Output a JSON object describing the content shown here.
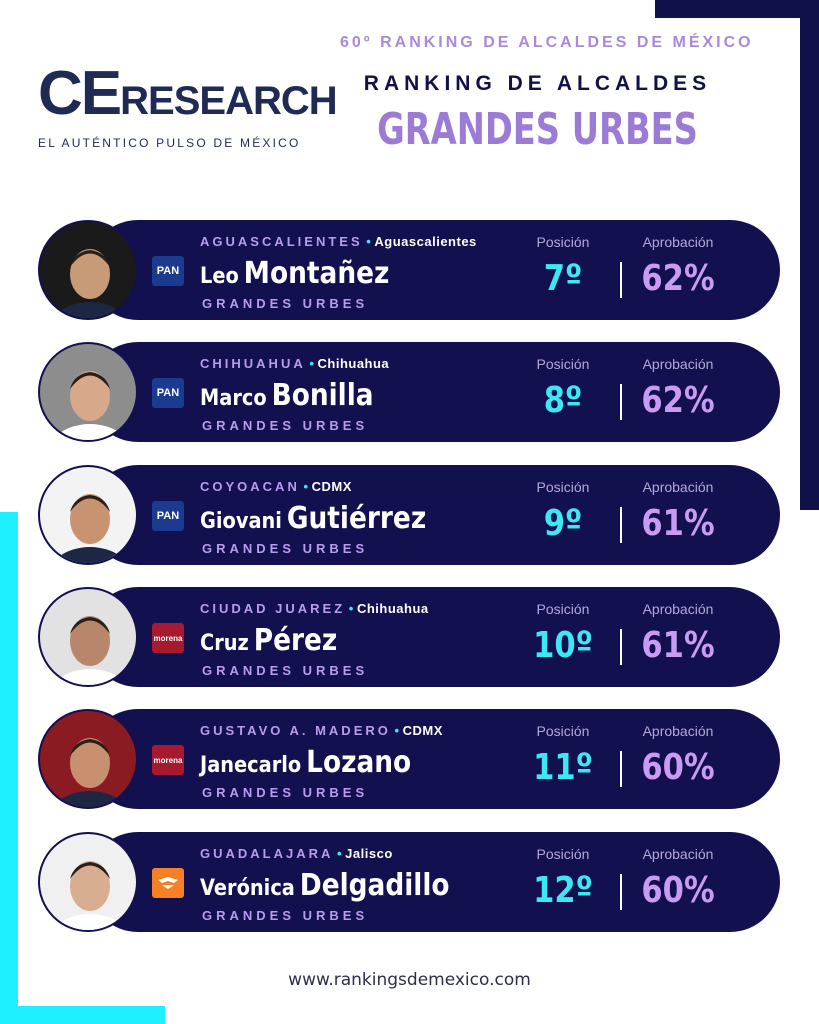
{
  "header": {
    "logo": {
      "main_a": "CE",
      "main_b": "RESEARCH",
      "tagline": "EL AUTÉNTICO PULSO DE MÉXICO"
    },
    "edition": "60º RANKING DE ALCALDES DE MÉXICO",
    "title": "RANKING DE ALCALDES",
    "subtitle": "GRANDES URBES"
  },
  "rows": [
    {
      "city": "AGUASCALIENTES",
      "state": "Aguascalientes",
      "first_name": "Leo",
      "last_name": "Montañez",
      "category": "GRANDES URBES",
      "party": "PAN",
      "position_label": "Posición",
      "position": "7º",
      "approval_label": "Aprobación",
      "approval": "62%"
    },
    {
      "city": "CHIHUAHUA",
      "state": "Chihuahua",
      "first_name": "Marco",
      "last_name": "Bonilla",
      "category": "GRANDES URBES",
      "party": "PAN",
      "position_label": "Posición",
      "position": "8º",
      "approval_label": "Aprobación",
      "approval": "62%"
    },
    {
      "city": "COYOACAN",
      "state": "CDMX",
      "first_name": "Giovani",
      "last_name": "Gutiérrez",
      "category": "GRANDES URBES",
      "party": "PAN",
      "position_label": "Posición",
      "position": "9º",
      "approval_label": "Aprobación",
      "approval": "61%"
    },
    {
      "city": "CIUDAD JUAREZ",
      "state": "Chihuahua",
      "first_name": "Cruz",
      "last_name": "Pérez",
      "category": "GRANDES URBES",
      "party": "morena",
      "position_label": "Posición",
      "position": "10º",
      "approval_label": "Aprobación",
      "approval": "61%"
    },
    {
      "city": "GUSTAVO A. MADERO",
      "state": "CDMX",
      "first_name": "Janecarlo",
      "last_name": "Lozano",
      "category": "GRANDES URBES",
      "party": "morena",
      "position_label": "Posición",
      "position": "11º",
      "approval_label": "Aprobación",
      "approval": "60%"
    },
    {
      "city": "GUADALAJARA",
      "state": "Jalisco",
      "first_name": "Verónica",
      "last_name": "Delgadillo",
      "category": "GRANDES URBES",
      "party": null,
      "position_label": "Posición",
      "position": "12º",
      "approval_label": "Aprobación",
      "approval": "60%"
    }
  ],
  "footer": "www.rankingsdemexico.com"
}
